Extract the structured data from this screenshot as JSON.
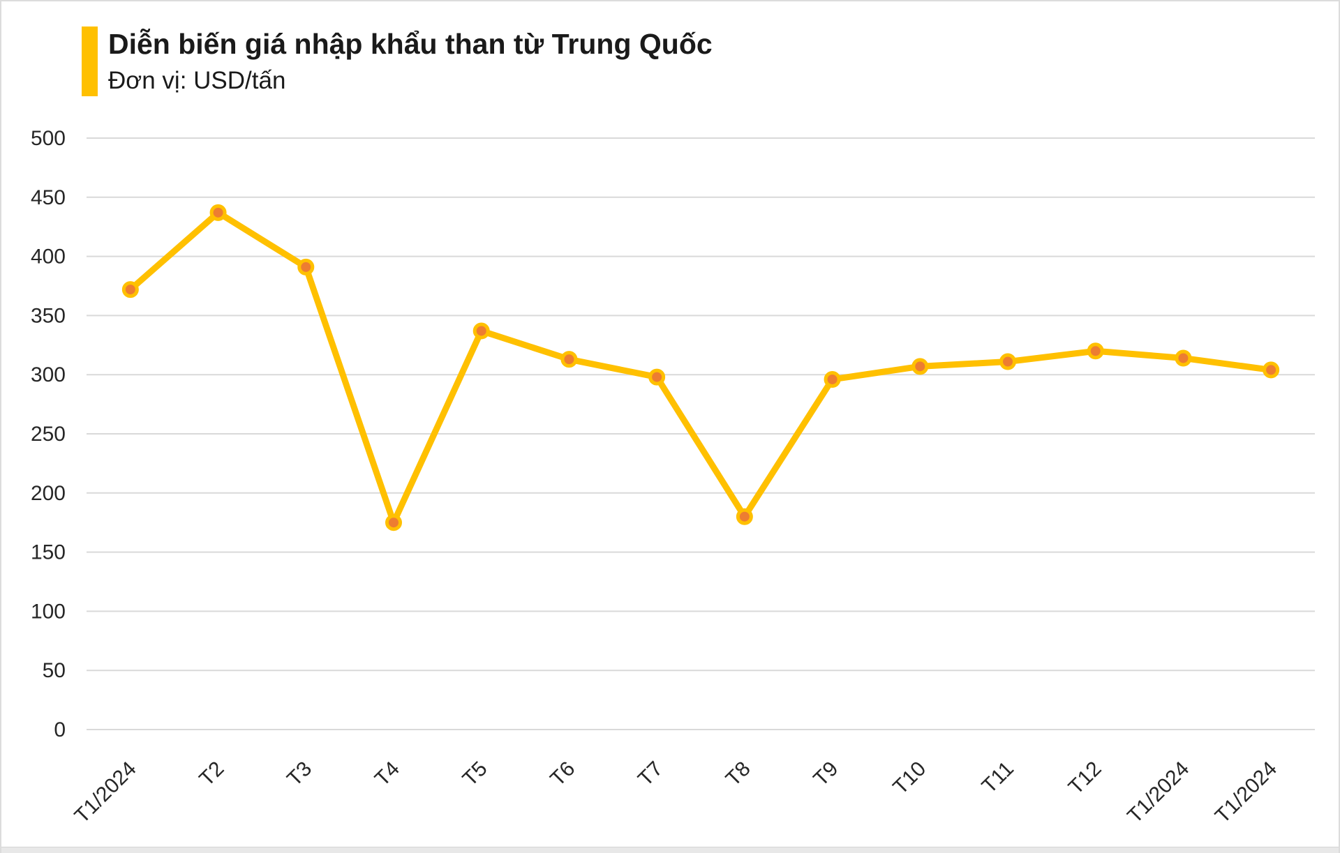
{
  "header": {
    "title": "Diễn biến giá nhập khẩu than từ Trung Quốc",
    "subtitle": "Đơn vị: USD/tấn",
    "accent_color": "#FFC000"
  },
  "chart_data": {
    "type": "line",
    "title": "Diễn biến giá nhập khẩu than từ Trung Quốc",
    "xlabel": "",
    "ylabel": "USD/tấn",
    "categories": [
      "T1/2024",
      "T2",
      "T3",
      "T4",
      "T5",
      "T6",
      "T7",
      "T8",
      "T9",
      "T10",
      "T11",
      "T12",
      "T1/2024",
      "T1/2024"
    ],
    "values": [
      372,
      437,
      391,
      175,
      337,
      313,
      298,
      180,
      296,
      307,
      311,
      320,
      314,
      304
    ],
    "ylim": [
      0,
      500
    ],
    "ytick_step": 50,
    "grid": true,
    "legend_position": "none",
    "line_color": "#FFC000",
    "marker_color": "#ED7D31",
    "marker_ring_color": "#FFC000",
    "gridline_color": "#D9D9D9",
    "tick_label_color": "#262626"
  }
}
